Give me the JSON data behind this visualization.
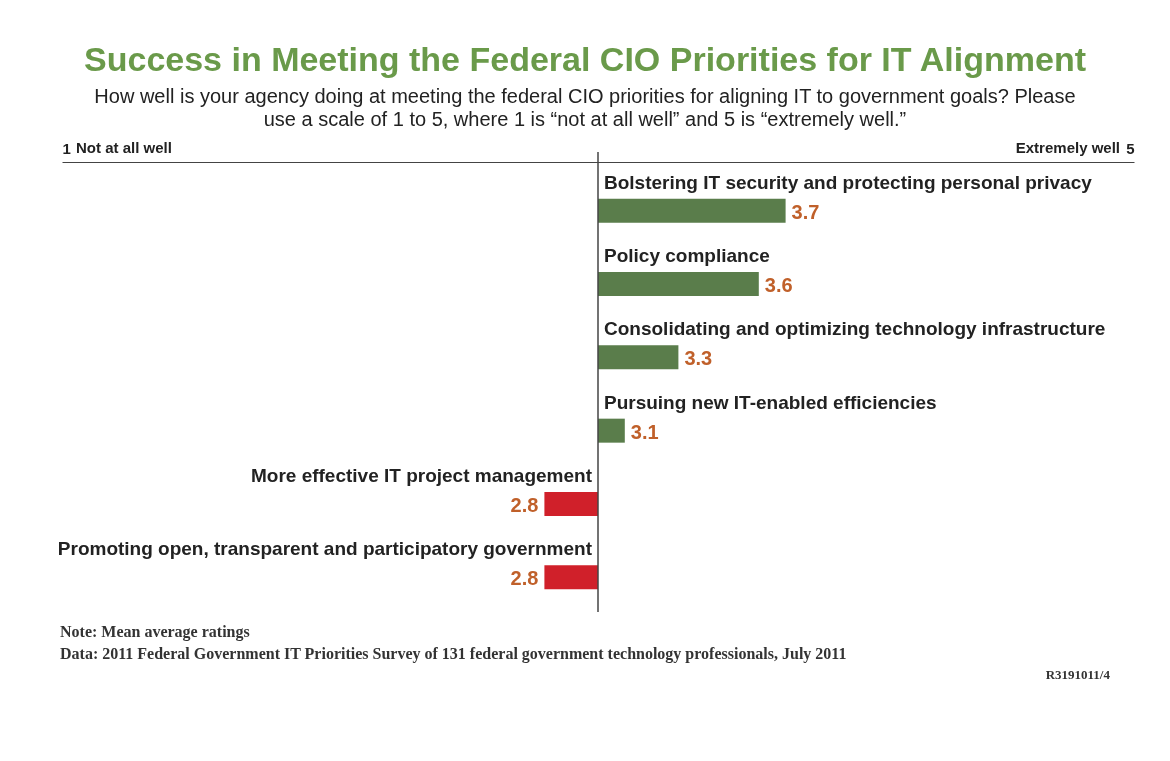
{
  "chart_data": {
    "type": "bar",
    "orientation": "horizontal",
    "title": "Success in Meeting the Federal CIO Priorities for IT Alignment",
    "subtitle": "How well is your agency doing at meeting the federal CIO priorities for aligning IT to government goals? Please use a scale of 1 to 5, where 1 is “not at all well” and 5 is “extremely well.”",
    "categories": [
      "Bolstering IT security and protecting personal privacy",
      "Policy compliance",
      "Consolidating and optimizing technology infrastructure",
      "Pursuing new IT-enabled efficiencies",
      "More effective IT project management",
      "Promoting open, transparent and participatory government"
    ],
    "base": [
      3,
      3,
      3,
      3,
      3,
      3
    ],
    "values": [
      0.7,
      0.6,
      0.3,
      0.1,
      -0.2,
      -0.2
    ],
    "value_labels": [
      "3.7",
      "3.6",
      "3.3",
      "3.1",
      "2.8",
      "2.8"
    ],
    "colors": [
      "#5a7d4b",
      "#5a7d4b",
      "#5a7d4b",
      "#5a7d4b",
      "#d0202a",
      "#d0202a"
    ],
    "xlim": [
      1,
      5
    ],
    "xticks": [
      1,
      5
    ],
    "annotations": [
      "Not at all well",
      "Extremely well",
      "Note: Mean average ratings",
      "Data: 2011 Federal Government IT Priorities Survey of 131 federal government technology professionals, July 2011",
      "R3191011/4"
    ]
  }
}
